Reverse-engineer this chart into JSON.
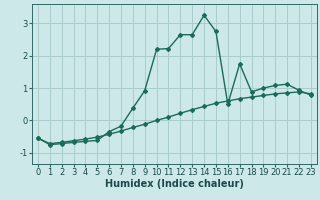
{
  "xlabel": "Humidex (Indice chaleur)",
  "background_color": "#cce8e8",
  "grid_color": "#aacccc",
  "line_color": "#1a6b5a",
  "x_values": [
    0,
    1,
    2,
    3,
    4,
    5,
    6,
    7,
    8,
    9,
    10,
    11,
    12,
    13,
    14,
    15,
    16,
    17,
    18,
    19,
    20,
    21,
    22,
    23
  ],
  "line1_y": [
    -0.55,
    -0.75,
    -0.72,
    -0.68,
    -0.65,
    -0.62,
    -0.35,
    -0.18,
    0.38,
    0.92,
    2.2,
    2.22,
    2.65,
    2.65,
    3.25,
    2.75,
    0.5,
    1.75,
    0.88,
    1.0,
    1.08,
    1.12,
    0.93,
    0.78
  ],
  "line2_y": [
    -0.55,
    -0.72,
    -0.68,
    -0.63,
    -0.58,
    -0.52,
    -0.43,
    -0.33,
    -0.22,
    -0.12,
    0.0,
    0.1,
    0.22,
    0.33,
    0.43,
    0.53,
    0.6,
    0.67,
    0.72,
    0.77,
    0.82,
    0.85,
    0.88,
    0.82
  ],
  "xlim": [
    -0.5,
    23.5
  ],
  "ylim": [
    -1.35,
    3.6
  ],
  "yticks": [
    -1,
    0,
    1,
    2,
    3
  ],
  "xticks": [
    0,
    1,
    2,
    3,
    4,
    5,
    6,
    7,
    8,
    9,
    10,
    11,
    12,
    13,
    14,
    15,
    16,
    17,
    18,
    19,
    20,
    21,
    22,
    23
  ],
  "xlabel_fontsize": 7,
  "tick_fontsize": 6,
  "marker": "D",
  "markersize": 2.0,
  "linewidth": 1.0
}
